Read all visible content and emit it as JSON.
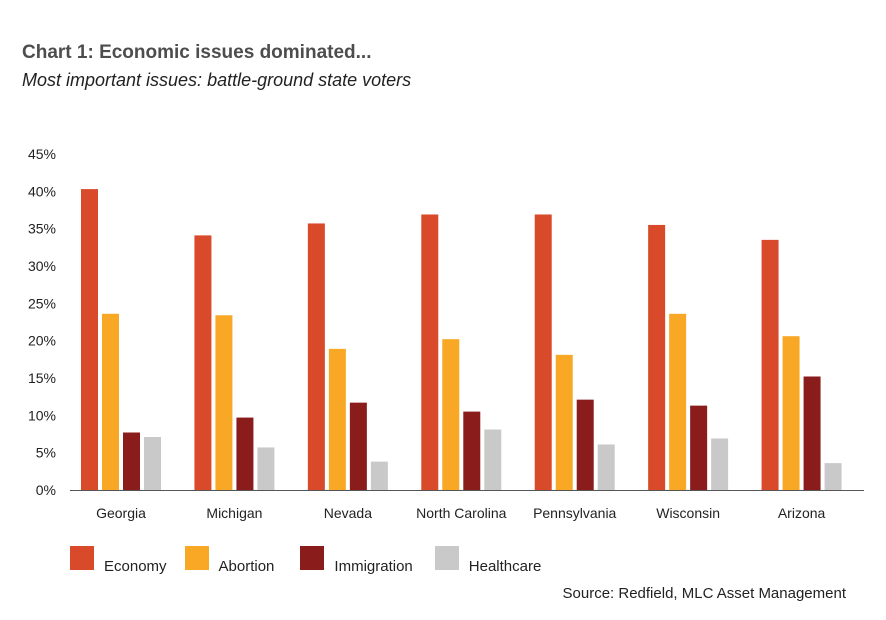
{
  "title": "Chart 1: Economic issues dominated...",
  "subtitle": "Most important issues: battle-ground state voters",
  "source": "Source: Redfield, MLC Asset Management",
  "chart_data": {
    "type": "bar",
    "title": "Chart 1: Economic issues dominated...",
    "subtitle": "Most important issues: battle-ground state voters",
    "categories": [
      "Georgia",
      "Michigan",
      "Nevada",
      "North Carolina",
      "Pennsylvania",
      "Wisconsin",
      "Arizona"
    ],
    "series": [
      {
        "name": "Economy",
        "color": "#d94a2b",
        "values": [
          40.3,
          34.1,
          35.7,
          36.9,
          36.9,
          35.5,
          33.5
        ]
      },
      {
        "name": "Abortion",
        "color": "#f9a825",
        "values": [
          23.6,
          23.4,
          18.9,
          20.2,
          18.1,
          23.6,
          20.6
        ]
      },
      {
        "name": "Immigration",
        "color": "#8b1c1c",
        "values": [
          7.7,
          9.7,
          11.7,
          10.5,
          12.1,
          11.3,
          15.2
        ]
      },
      {
        "name": "Healthcare",
        "color": "#c9c9c9",
        "values": [
          7.1,
          5.7,
          3.8,
          8.1,
          6.1,
          6.9,
          3.6
        ]
      }
    ],
    "yticks": [
      "0%",
      "5%",
      "10%",
      "15%",
      "20%",
      "25%",
      "30%",
      "35%",
      "40%",
      "45%"
    ],
    "ylim": [
      0,
      45
    ],
    "xlabel": "",
    "ylabel": "",
    "grid": false,
    "legend": "bottom"
  }
}
